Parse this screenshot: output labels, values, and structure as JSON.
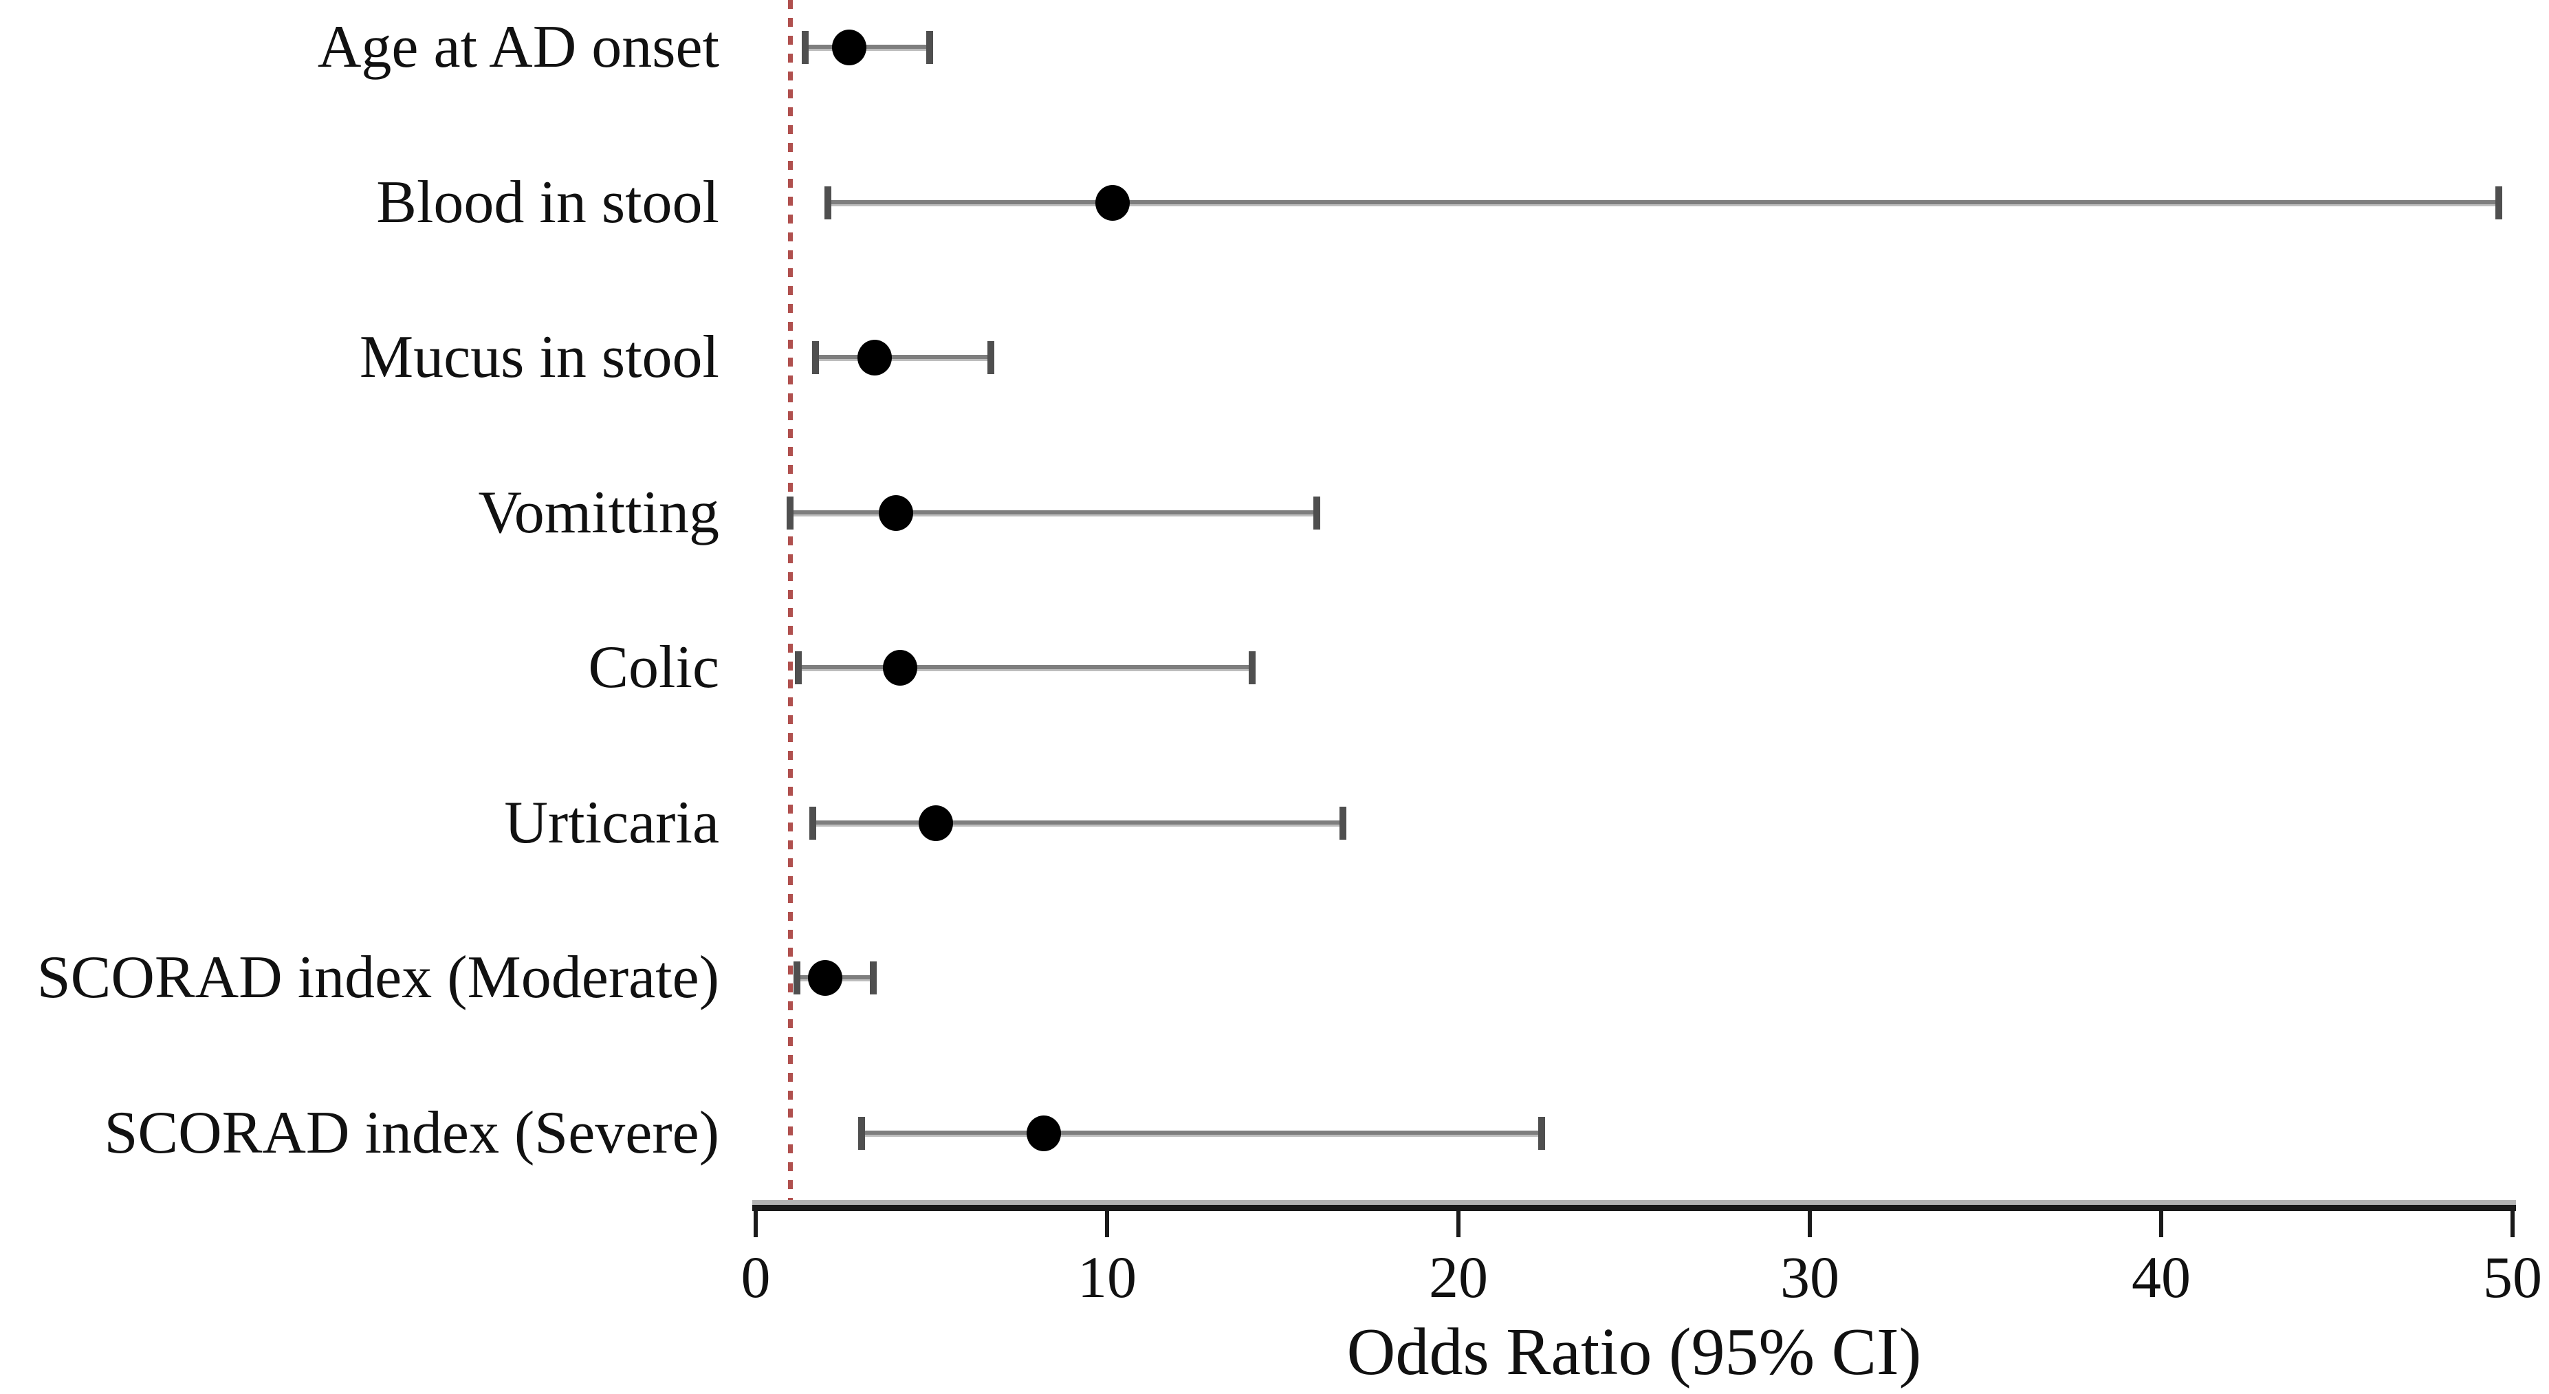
{
  "chart_data": {
    "type": "scatter",
    "variant": "forest-plot (horizontal odds-ratio dot with 95% CI error bars)",
    "title": "",
    "xlabel": "Odds Ratio (95% CI)",
    "ylabel": "",
    "xlim": [
      0,
      50
    ],
    "x_ticks": [
      "0",
      "10",
      "20",
      "30",
      "40",
      "50"
    ],
    "grid": "off",
    "legend": "none",
    "reference_line": {
      "x": 1,
      "style": "dashed",
      "color": "#b0504e"
    },
    "rows": [
      {
        "label": "Age at AD onset",
        "or": 2.66,
        "ci_low": 1.41,
        "ci_high": 4.95
      },
      {
        "label": "Blood in stool",
        "or": 10.15,
        "ci_low": 2.06,
        "ci_high": 49.6
      },
      {
        "label": "Mucus in stool",
        "or": 3.38,
        "ci_low": 1.7,
        "ci_high": 6.69
      },
      {
        "label": "Vomitting",
        "or": 3.99,
        "ci_low": 0.98,
        "ci_high": 15.97
      },
      {
        "label": "Colic",
        "or": 4.11,
        "ci_low": 1.21,
        "ci_high": 14.13
      },
      {
        "label": "Urticaria",
        "or": 5.13,
        "ci_low": 1.62,
        "ci_high": 16.72
      },
      {
        "label": "SCORAD index (Moderate)",
        "or": 1.98,
        "ci_low": 1.18,
        "ci_high": 3.35
      },
      {
        "label": "SCORAD index (Severe)",
        "or": 8.19,
        "ci_low": 3.02,
        "ci_high": 22.36
      }
    ],
    "colors": {
      "marker": "#000000",
      "ci_line": "#7e7e7e",
      "ci_cap": "#4f4f4f",
      "axis": "#1a1a1a",
      "reference": "#b0504e",
      "text": "#111111",
      "background": "#ffffff"
    }
  }
}
